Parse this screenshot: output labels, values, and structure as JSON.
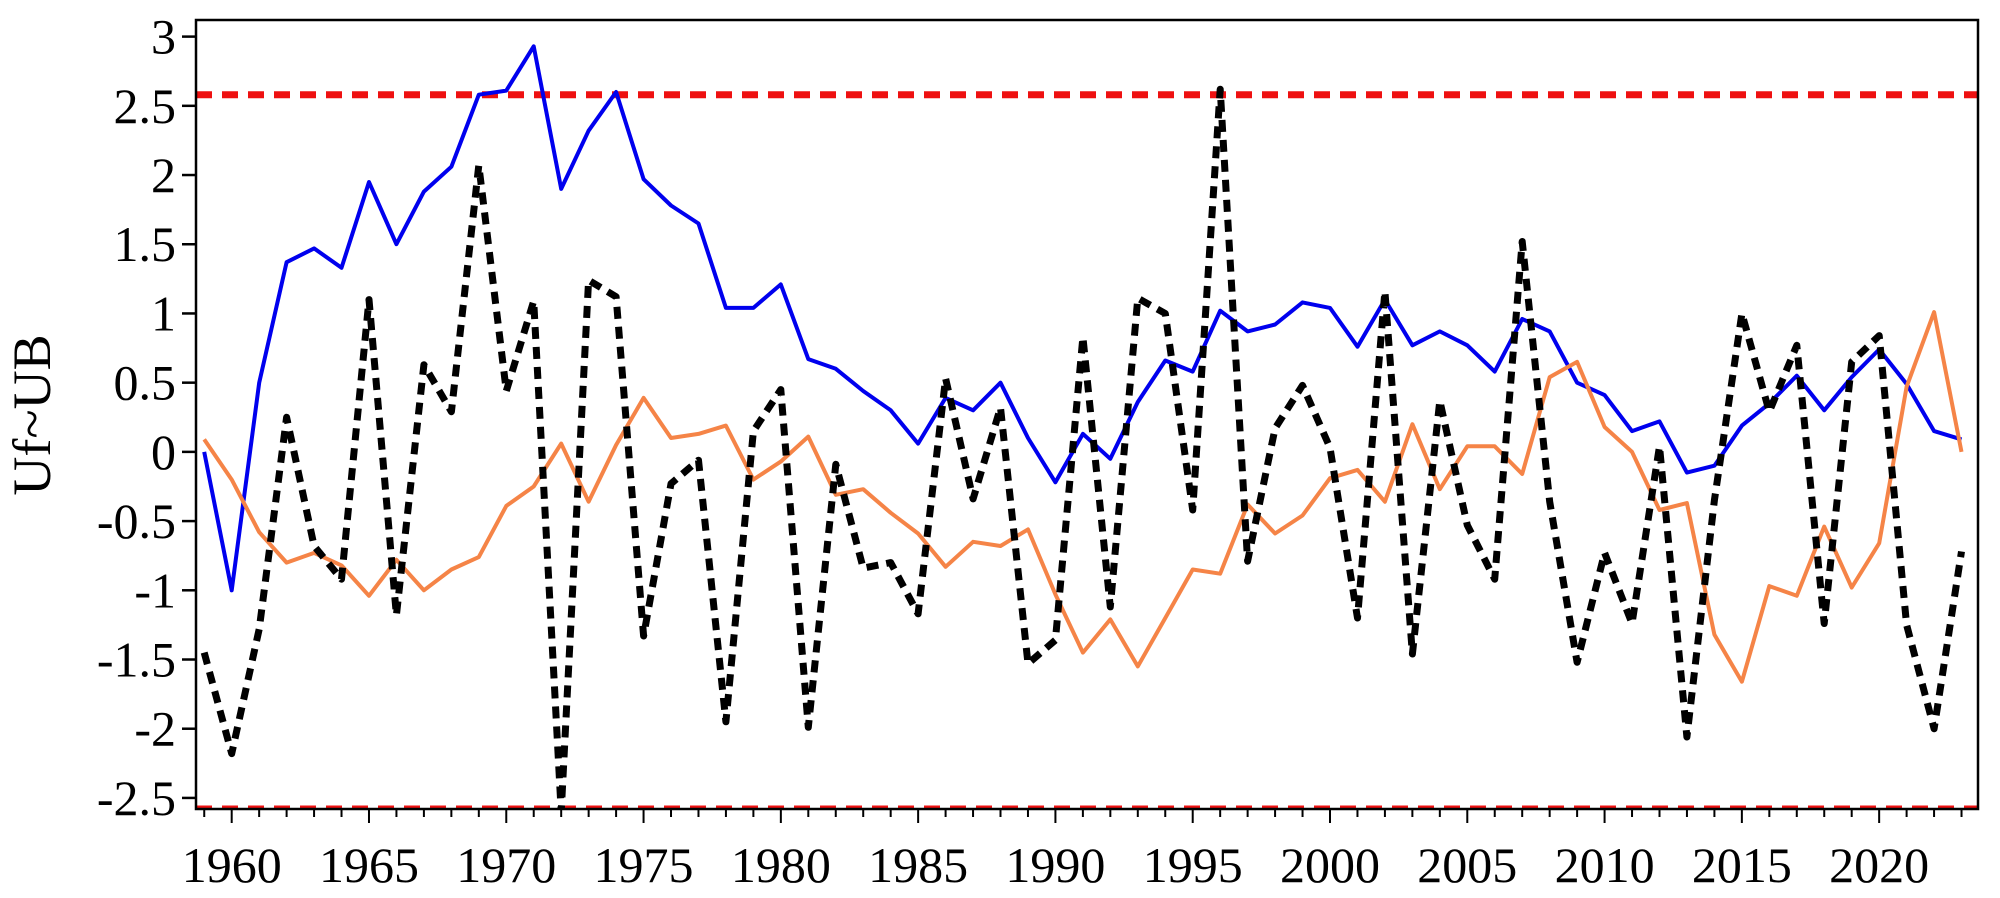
{
  "chart_data": {
    "type": "line",
    "title": "",
    "xlabel": "",
    "ylabel": "Uf~UB",
    "xlim": [
      1958.7,
      2023.6
    ],
    "ylim": [
      -2.58,
      3.12
    ],
    "x_ticks": [
      1960,
      1965,
      1970,
      1975,
      1980,
      1985,
      1990,
      1995,
      2000,
      2005,
      2010,
      2015,
      2020
    ],
    "y_ticks": [
      3,
      2.5,
      2,
      1.5,
      1,
      0.5,
      0,
      -0.5,
      -1,
      -1.5,
      -2,
      -2.5
    ],
    "grid": false,
    "legend": "none",
    "x": [
      1959,
      1960,
      1961,
      1962,
      1963,
      1964,
      1965,
      1966,
      1967,
      1968,
      1969,
      1970,
      1971,
      1972,
      1973,
      1974,
      1975,
      1976,
      1977,
      1978,
      1979,
      1980,
      1981,
      1982,
      1983,
      1984,
      1985,
      1986,
      1987,
      1988,
      1989,
      1990,
      1991,
      1992,
      1993,
      1994,
      1995,
      1996,
      1997,
      1998,
      1999,
      2000,
      2001,
      2002,
      2003,
      2004,
      2005,
      2006,
      2007,
      2008,
      2009,
      2010,
      2011,
      2012,
      2013,
      2014,
      2015,
      2016,
      2017,
      2018,
      2019,
      2020,
      2021,
      2022,
      2023
    ],
    "series": [
      {
        "color": "#0000ee",
        "style": "solid",
        "values": [
          0.0,
          -1.0,
          0.5,
          1.37,
          1.47,
          1.33,
          1.95,
          1.5,
          1.88,
          2.06,
          2.58,
          2.61,
          2.93,
          1.9,
          2.32,
          2.6,
          1.97,
          1.78,
          1.65,
          1.04,
          1.04,
          1.21,
          0.67,
          0.6,
          0.44,
          0.3,
          0.06,
          0.39,
          0.3,
          0.5,
          0.1,
          -0.22,
          0.13,
          -0.05,
          0.36,
          0.66,
          0.58,
          1.02,
          0.87,
          0.92,
          1.08,
          1.04,
          0.76,
          1.1,
          0.77,
          0.87,
          0.77,
          0.58,
          0.96,
          0.87,
          0.5,
          0.41,
          0.15,
          0.22,
          -0.15,
          -0.1,
          0.19,
          0.35,
          0.55,
          0.3,
          0.54,
          0.74,
          0.49,
          0.15,
          0.09
        ]
      },
      {
        "color": "#f58447",
        "style": "solid",
        "values": [
          0.09,
          -0.2,
          -0.58,
          -0.8,
          -0.73,
          -0.82,
          -1.04,
          -0.78,
          -1.0,
          -0.85,
          -0.76,
          -0.39,
          -0.25,
          0.06,
          -0.36,
          0.05,
          0.39,
          0.1,
          0.13,
          0.19,
          -0.2,
          -0.07,
          0.11,
          -0.31,
          -0.27,
          -0.44,
          -0.59,
          -0.83,
          -0.65,
          -0.68,
          -0.56,
          -1.03,
          -1.45,
          -1.21,
          -1.55,
          -1.2,
          -0.85,
          -0.88,
          -0.38,
          -0.59,
          -0.46,
          -0.19,
          -0.13,
          -0.36,
          0.2,
          -0.27,
          0.04,
          0.04,
          -0.16,
          0.54,
          0.65,
          0.18,
          0.0,
          -0.42,
          -0.37,
          -1.32,
          -1.66,
          -0.97,
          -1.04,
          -0.54,
          -0.98,
          -0.66,
          0.47,
          1.01,
          0.0
        ]
      },
      {
        "color": "#000000",
        "style": "dashed",
        "values": [
          -1.45,
          -2.18,
          -1.28,
          0.25,
          -0.68,
          -0.92,
          1.1,
          -1.18,
          0.63,
          0.29,
          2.07,
          0.44,
          1.09,
          -2.6,
          1.24,
          1.12,
          -1.33,
          -0.23,
          -0.06,
          -1.95,
          0.15,
          0.45,
          -1.99,
          -0.09,
          -0.84,
          -0.8,
          -1.17,
          0.53,
          -0.34,
          0.32,
          -1.53,
          -1.36,
          0.83,
          -1.12,
          1.11,
          1.0,
          -0.42,
          2.62,
          -0.79,
          0.17,
          0.48,
          0.03,
          -1.2,
          1.16,
          -1.46,
          0.37,
          -0.53,
          -0.92,
          1.52,
          -0.36,
          -1.52,
          -0.73,
          -1.24,
          0.04,
          -2.06,
          -0.35,
          1.0,
          0.29,
          0.77,
          -1.24,
          0.65,
          0.84,
          -1.25,
          -2.0,
          -0.72
        ]
      }
    ],
    "reference_lines": [
      {
        "y": 2.58,
        "color": "#ee1111",
        "style": "dashed"
      },
      {
        "y": -2.58,
        "color": "#ee1111",
        "style": "dashed"
      }
    ]
  }
}
